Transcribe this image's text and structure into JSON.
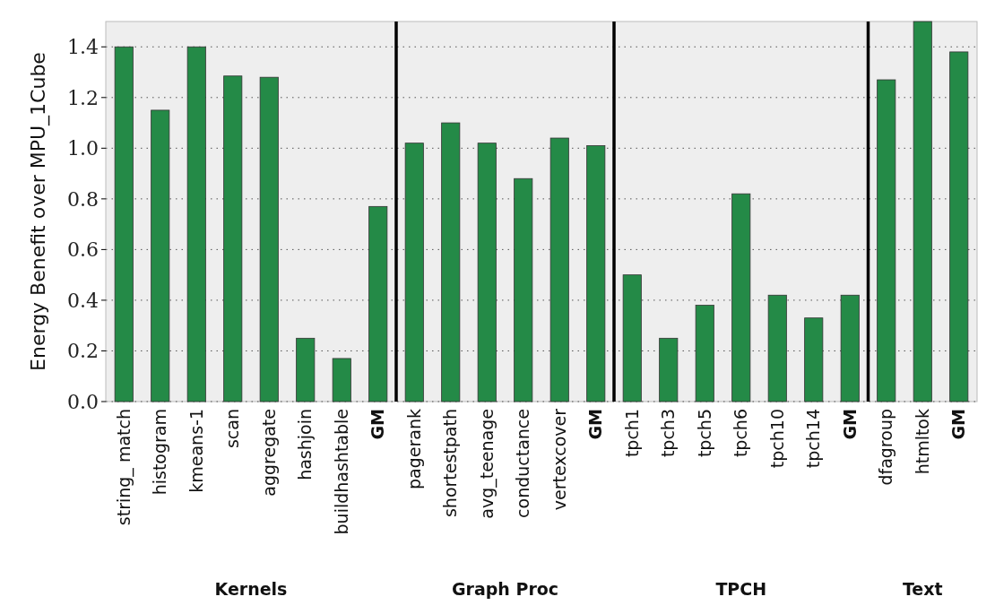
{
  "chart_data": {
    "type": "bar",
    "ylabel": "Energy Benefit over MPU_1Cube",
    "categories": [
      "string_ match",
      "histogram",
      "kmeans-1",
      "scan",
      "aggregate",
      "hashjoin",
      "buildhashtable",
      "GM",
      "pagerank",
      "shortestpath",
      "avg_teenage",
      "conductance",
      "vertexcover",
      "GM",
      "tpch1",
      "tpch3",
      "tpch5",
      "tpch6",
      "tpch10",
      "tpch14",
      "GM",
      "dfagroup",
      "htmltok",
      "GM"
    ],
    "values": [
      1.4,
      1.15,
      1.4,
      1.285,
      1.28,
      0.25,
      0.17,
      0.77,
      1.02,
      1.1,
      1.02,
      0.88,
      1.04,
      1.01,
      0.5,
      0.25,
      0.38,
      0.82,
      0.42,
      0.33,
      0.42,
      1.27,
      1.5,
      1.38
    ],
    "color": "#248a47",
    "ylim": [
      0,
      1.5
    ],
    "yticks": [
      {
        "value": 0,
        "label": "0.0"
      },
      {
        "value": 0.2,
        "label": "0.2"
      },
      {
        "value": 0.4,
        "label": "0.4"
      },
      {
        "value": 0.6,
        "label": "0.6"
      },
      {
        "value": 0.8,
        "label": "0.8"
      },
      {
        "value": 1,
        "label": "1.0"
      },
      {
        "value": 1.2,
        "label": "1.2"
      },
      {
        "value": 1.4,
        "label": "1.4"
      }
    ],
    "grid": "y",
    "annotations": [
      "Kernels",
      "Graph Proc",
      "TPCH",
      "Text"
    ]
  }
}
